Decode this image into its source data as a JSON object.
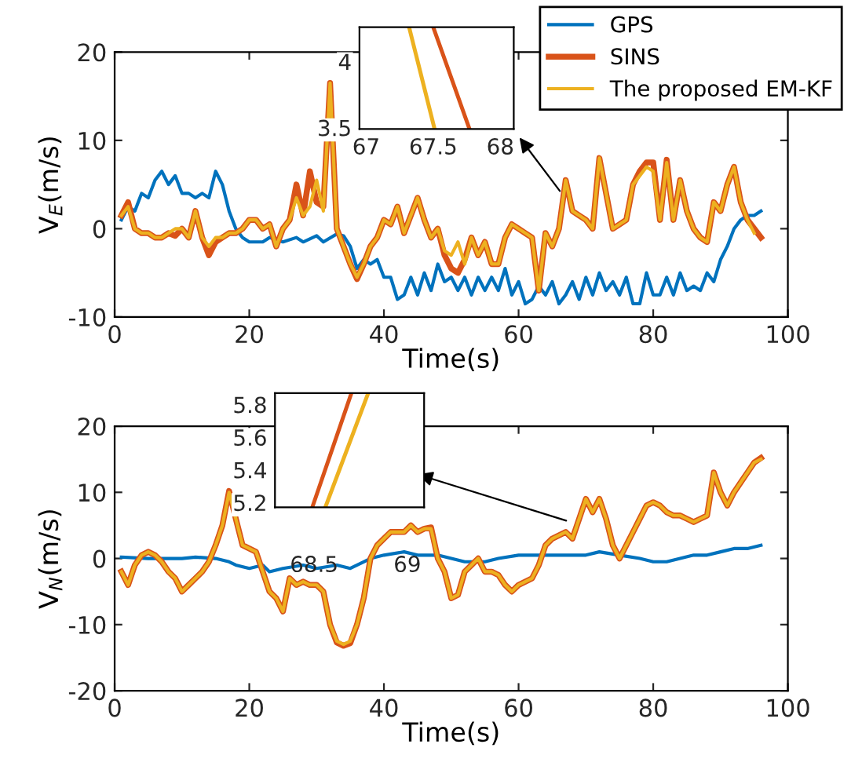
{
  "chart_data": [
    {
      "type": "line",
      "xlabel": "Time(s)",
      "ylabel": "V$_{E}$(m/s)",
      "xlim": [
        0,
        100
      ],
      "ylim": [
        -10,
        20
      ],
      "xticks": [
        0,
        20,
        40,
        60,
        80,
        100
      ],
      "yticks": [
        -10,
        0,
        10,
        20
      ],
      "legend": "top right",
      "grid": false,
      "line_style": "solid",
      "marker": "none",
      "series": [
        {
          "name": "GPS",
          "color": "#0072bd",
          "x": [
            1,
            2,
            3,
            4,
            5,
            6,
            7,
            8,
            9,
            10,
            11,
            12,
            13,
            14,
            15,
            16,
            17,
            18,
            19,
            20,
            22,
            23,
            25,
            27,
            28,
            30,
            31,
            33,
            34,
            35,
            36,
            37,
            38,
            39,
            40,
            41,
            42,
            43,
            44,
            45,
            46,
            47,
            48,
            49,
            50,
            51,
            52,
            53,
            54,
            55,
            56,
            57,
            58,
            59,
            60,
            61,
            62,
            63,
            64,
            65,
            66,
            67,
            68,
            69,
            70,
            71,
            72,
            73,
            74,
            75,
            76,
            77,
            78,
            79,
            80,
            81,
            82,
            83,
            84,
            85,
            86,
            87,
            88,
            89,
            90,
            91,
            92,
            93,
            94,
            95,
            96
          ],
          "values": [
            1,
            2.5,
            2,
            4,
            3.5,
            5.5,
            6.5,
            5,
            6,
            4,
            4,
            3.5,
            4,
            3.5,
            6.5,
            5,
            2,
            0,
            -1,
            -1.5,
            -1.5,
            -1,
            -1.5,
            -1,
            -1.5,
            -0.8,
            -1.5,
            -0.6,
            -0.8,
            -2,
            -4.5,
            -3.5,
            -4,
            -3.5,
            -5.5,
            -5.5,
            -8,
            -7.5,
            -5.5,
            -7.5,
            -5,
            -7,
            -4,
            -6,
            -5.5,
            -7,
            -5.5,
            -7.5,
            -5.5,
            -7,
            -5.5,
            -7,
            -4.5,
            -7.5,
            -6,
            -8.5,
            -8,
            -6.5,
            -7.5,
            -6,
            -8.5,
            -7.5,
            -6,
            -8,
            -5.5,
            -7.5,
            -5,
            -7,
            -6,
            -7.5,
            -5.5,
            -8.5,
            -8.5,
            -5,
            -7.5,
            -7.5,
            -5.5,
            -7.5,
            -5,
            -7,
            -6.5,
            -7,
            -5,
            -6,
            -3.5,
            -2,
            0,
            1,
            1.5,
            1.5,
            2
          ]
        },
        {
          "name": "SINS",
          "color": "#d95319",
          "x": [
            1,
            2,
            3,
            4,
            5,
            6,
            7,
            8,
            9,
            10,
            11,
            12,
            13,
            14,
            15,
            16,
            17,
            18,
            19,
            20,
            21,
            22,
            23,
            24,
            25,
            26,
            27,
            28,
            29,
            30,
            31,
            32,
            33,
            34,
            35,
            36,
            37,
            38,
            39,
            40,
            41,
            42,
            43,
            44,
            45,
            46,
            47,
            48,
            49,
            50,
            51,
            52,
            53,
            54,
            55,
            56,
            57,
            58,
            59,
            60,
            61,
            62,
            63,
            64,
            65,
            66,
            67,
            68,
            69,
            70,
            71,
            72,
            73,
            74,
            75,
            76,
            77,
            78,
            79,
            80,
            81,
            82,
            83,
            84,
            85,
            86,
            87,
            88,
            89,
            90,
            91,
            92,
            93,
            94,
            95,
            96
          ],
          "values": [
            1.5,
            3,
            0,
            -0.5,
            -0.5,
            -1,
            -1,
            -0.5,
            -0.8,
            0,
            -1,
            2,
            -1,
            -3,
            -1.5,
            -1,
            -0.5,
            -0.5,
            0,
            1,
            1,
            0,
            0.5,
            -2,
            0,
            1,
            5,
            1.5,
            6.5,
            3,
            2.5,
            16.5,
            0,
            -2,
            -4,
            -5.7,
            -4,
            -2,
            -1,
            1,
            0.5,
            2.5,
            -0.5,
            1.5,
            3.5,
            1,
            -1,
            0,
            -3,
            -4.5,
            -5,
            -3.5,
            -1,
            -3,
            -1.5,
            -4,
            -4,
            -1,
            0.5,
            0,
            -0.5,
            -1,
            -7,
            -0.5,
            -2,
            0,
            5.5,
            2,
            1.5,
            1,
            0,
            8,
            4,
            0,
            0.5,
            1,
            5,
            6.5,
            7.5,
            7.5,
            1,
            7.8,
            1,
            5.5,
            2,
            0,
            -1,
            -1.5,
            3,
            2,
            5,
            7,
            3,
            1,
            0,
            -1
          ]
        },
        {
          "name": "The proposed EM-KF",
          "color": "#edb120",
          "x": [
            1,
            2,
            3,
            4,
            5,
            6,
            7,
            8,
            9,
            10,
            11,
            12,
            13,
            14,
            15,
            16,
            17,
            18,
            19,
            20,
            21,
            22,
            23,
            24,
            25,
            26,
            27,
            28,
            29,
            30,
            31,
            32,
            33,
            34,
            35,
            36,
            37,
            38,
            39,
            40,
            41,
            42,
            43,
            44,
            45,
            46,
            47,
            48,
            49,
            50,
            51,
            52,
            53,
            54,
            55,
            56,
            57,
            58,
            59,
            60,
            61,
            62,
            63,
            64,
            65,
            66,
            67,
            68,
            69,
            70,
            71,
            72,
            73,
            74,
            75,
            76,
            77,
            78,
            79,
            80,
            81,
            82,
            83,
            84,
            85,
            86,
            87,
            88,
            89,
            90,
            91,
            92,
            93,
            94,
            95
          ],
          "values": [
            1.5,
            2.5,
            0,
            -0.5,
            -0.5,
            -1,
            -1,
            -0.5,
            0,
            0,
            -1,
            2,
            -1,
            -2,
            -1,
            -1,
            -0.5,
            -0.5,
            0,
            1,
            1,
            0,
            0.5,
            -2,
            0,
            1,
            3.5,
            1.5,
            2.5,
            5.5,
            2,
            16.5,
            0,
            -2,
            -4,
            -5.5,
            -4,
            -2,
            -1,
            1,
            0.5,
            2.5,
            -0.5,
            1.5,
            3.5,
            1,
            -1,
            0,
            -2.5,
            -3,
            -1.5,
            -4,
            -1,
            -3,
            -1.5,
            -4,
            -4,
            -1,
            0.5,
            0,
            -0.5,
            -1,
            -7,
            -0.5,
            -2,
            0,
            5.5,
            2,
            1.5,
            1,
            0,
            8,
            4,
            0,
            0.5,
            1,
            5,
            6,
            7,
            6.5,
            1,
            7.5,
            1,
            5.5,
            2,
            0,
            -1,
            -1.5,
            3,
            2,
            5,
            7,
            3,
            1,
            -0.5
          ]
        }
      ]
    },
    {
      "type": "line",
      "xlim": [
        66.95,
        68.1
      ],
      "ylim": [
        3.49,
        4.26
      ],
      "xticks": [
        67,
        67.5,
        68
      ],
      "yticks": [
        3.5,
        4
      ],
      "grid": false,
      "line_style": "solid",
      "marker": "none",
      "series": [
        {
          "color": "#d95319",
          "x": [
            67.5,
            67.77
          ],
          "values": [
            4.26,
            3.49
          ]
        },
        {
          "color": "#edb120",
          "x": [
            67.32,
            67.51
          ],
          "values": [
            4.26,
            3.49
          ]
        }
      ]
    },
    {
      "type": "line",
      "xlabel": "Time(s)",
      "ylabel": "V$_{N}$(m/s)",
      "xlim": [
        0,
        100
      ],
      "ylim": [
        -20,
        20
      ],
      "xticks": [
        0,
        20,
        40,
        60,
        80,
        100
      ],
      "yticks": [
        -20,
        -10,
        0,
        10,
        20
      ],
      "grid": false,
      "line_style": "solid",
      "marker": "none",
      "series": [
        {
          "color": "#0072bd",
          "x": [
            1,
            5,
            10,
            12,
            15,
            17,
            18,
            20,
            22,
            23,
            25,
            28,
            30,
            33,
            35,
            37,
            38,
            40,
            43,
            45,
            48,
            50,
            52,
            55,
            57,
            60,
            65,
            70,
            72,
            75,
            78,
            80,
            82,
            84,
            86,
            88,
            90,
            92,
            94,
            96
          ],
          "values": [
            0.2,
            0,
            0,
            0.2,
            0,
            -0.5,
            -1,
            -1.5,
            -1,
            -2,
            -1.5,
            -1,
            -1.5,
            -1,
            -1.5,
            -0.5,
            0,
            0.5,
            1,
            0.5,
            0.5,
            0,
            -0.5,
            -0.5,
            0,
            0.5,
            0.5,
            0.5,
            1,
            0.5,
            0,
            -0.5,
            -0.5,
            0,
            0.5,
            0.5,
            1,
            1.5,
            1.5,
            2
          ]
        },
        {
          "color": "#d95319",
          "x": [
            1,
            2,
            3,
            4,
            5,
            6,
            7,
            8,
            9,
            10,
            11,
            12,
            13,
            14,
            15,
            16,
            17,
            18,
            19,
            20,
            21,
            22,
            23,
            24,
            25,
            26,
            27,
            28,
            29,
            30,
            31,
            32,
            33,
            34,
            35,
            36,
            37,
            38,
            39,
            40,
            41,
            42,
            43,
            44,
            45,
            46,
            47,
            48,
            49,
            50,
            51,
            52,
            53,
            54,
            55,
            56,
            57,
            58,
            59,
            60,
            61,
            62,
            63,
            64,
            65,
            66,
            67,
            68,
            69,
            70,
            71,
            72,
            73,
            74,
            75,
            76,
            77,
            78,
            79,
            80,
            81,
            82,
            83,
            84,
            85,
            86,
            87,
            88,
            89,
            90,
            91,
            92,
            93,
            94,
            95,
            96
          ],
          "values": [
            -2,
            -4,
            -1,
            0.5,
            1,
            0.5,
            -0.5,
            -2,
            -3,
            -5,
            -4,
            -3,
            -2,
            -0.5,
            2,
            5,
            10.2,
            6,
            2,
            1.5,
            1,
            -2,
            -5,
            -6,
            -8,
            -3,
            -4,
            -3.5,
            -4,
            -4,
            -5,
            -10,
            -12.7,
            -13.2,
            -12.8,
            -10,
            -6,
            0,
            2,
            3,
            4,
            4,
            4,
            5,
            4,
            4.5,
            4.7,
            0,
            -2,
            -6,
            -5.5,
            -2,
            -1,
            0,
            -2,
            -2,
            -2.5,
            -4,
            -5,
            -4,
            -3.5,
            -3,
            -1,
            2,
            3,
            3.5,
            4,
            3,
            6,
            9,
            7,
            9,
            6,
            2,
            0,
            2,
            4,
            6,
            8,
            8.5,
            8,
            7,
            6.5,
            6.5,
            6,
            5.5,
            6,
            6.5,
            13,
            10,
            8,
            10,
            11.5,
            13,
            14.5,
            15.2
          ]
        },
        {
          "color": "#edb120",
          "x": [
            1,
            2,
            3,
            4,
            5,
            6,
            7,
            8,
            9,
            10,
            11,
            12,
            13,
            14,
            15,
            16,
            17,
            18,
            19,
            20,
            21,
            22,
            23,
            24,
            25,
            26,
            27,
            28,
            29,
            30,
            31,
            32,
            33,
            34,
            35,
            36,
            37,
            38,
            39,
            40,
            41,
            42,
            43,
            44,
            45,
            46,
            47,
            48,
            49,
            50,
            51,
            52,
            53,
            54,
            55,
            56,
            57,
            58,
            59,
            60,
            61,
            62,
            63,
            64,
            65,
            66,
            67,
            68,
            69,
            70,
            71,
            72,
            73,
            74,
            75,
            76,
            77,
            78,
            79,
            80,
            81,
            82,
            83,
            84,
            85,
            86,
            87,
            88,
            89,
            90,
            91,
            92,
            93,
            94,
            95,
            96
          ],
          "values": [
            -2,
            -4,
            -1,
            0.5,
            1,
            0.5,
            -0.5,
            -2,
            -3,
            -5,
            -4,
            -3,
            -2,
            -0.5,
            2,
            5,
            10,
            6,
            2,
            1.5,
            1,
            -2,
            -5,
            -6,
            -8,
            -3,
            -4,
            -3.5,
            -4,
            -4,
            -5,
            -10,
            -12.5,
            -13,
            -12.5,
            -10,
            -6,
            0,
            2,
            3,
            4,
            4,
            4,
            5,
            4,
            4.5,
            4.5,
            0,
            -2,
            -6,
            -5.5,
            -2,
            -1,
            0,
            -2,
            -2,
            -2.5,
            -4,
            -5,
            -4,
            -3.5,
            -3,
            -1,
            2,
            3,
            3.5,
            4,
            3,
            6,
            9,
            7,
            9,
            6,
            2,
            0,
            2,
            4,
            6,
            8,
            8.5,
            8,
            7,
            6.5,
            6.5,
            6,
            5.5,
            6,
            6.5,
            13,
            10,
            8,
            10,
            11.5,
            13,
            14.5,
            15
          ]
        }
      ]
    },
    {
      "type": "line",
      "xlim": [
        68.29,
        69.09
      ],
      "ylim": [
        5.17,
        5.87
      ],
      "xticks": [
        68.5,
        69
      ],
      "yticks": [
        5.2,
        5.4,
        5.6,
        5.8
      ],
      "grid": false,
      "line_style": "solid",
      "marker": "none",
      "series": [
        {
          "color": "#d95319",
          "x": [
            68.49,
            68.7
          ],
          "values": [
            5.17,
            5.87
          ]
        },
        {
          "color": "#edb120",
          "x": [
            68.56,
            68.79
          ],
          "values": [
            5.17,
            5.87
          ]
        }
      ]
    }
  ]
}
